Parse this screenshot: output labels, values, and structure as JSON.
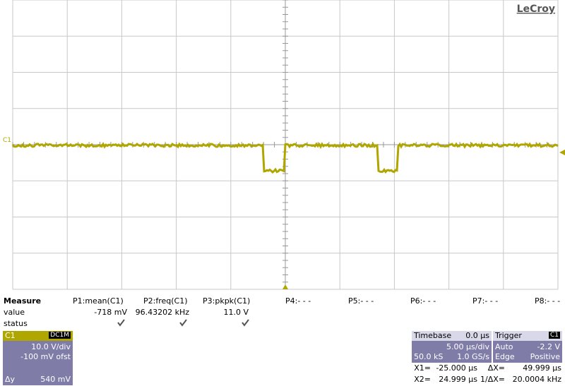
{
  "logo": "LeCroy",
  "channel_marker": "C1",
  "measure": {
    "title": "Measure",
    "params": [
      "P1:mean(C1)",
      "P2:freq(C1)",
      "P3:pkpk(C1)",
      "P4:- - -",
      "P5:- - -",
      "P6:- - -",
      "P7:- - -",
      "P8:- - -"
    ],
    "value_label": "value",
    "values": [
      "-718 mV",
      "96.43202 kHz",
      "11.0 V"
    ],
    "status_label": "status"
  },
  "channel": {
    "name": "C1",
    "coupling": "DC1M",
    "scale": "10.0 V/div",
    "offset": "-100 mV ofst",
    "delta_label": "Δy",
    "delta": "540 mV"
  },
  "timebase": {
    "title": "Timebase",
    "delay": "0.0 µs",
    "scale": "5.00 µs/div",
    "samples": "50.0 kS",
    "rate": "1.0 GS/s"
  },
  "trigger": {
    "title": "Trigger",
    "channel": "C1",
    "mode": "Auto",
    "level": "-2.2 V",
    "type": "Edge",
    "slope": "Positive"
  },
  "cursors": {
    "x1_label": "X1=",
    "x1": "-25.000 µs",
    "dx_label": "ΔX=",
    "dx": "49.999 µs",
    "x2_label": "X2=",
    "x2": "24.999 µs",
    "inv_label": "1/ΔX=",
    "inv": "20.0004 kHz"
  }
}
